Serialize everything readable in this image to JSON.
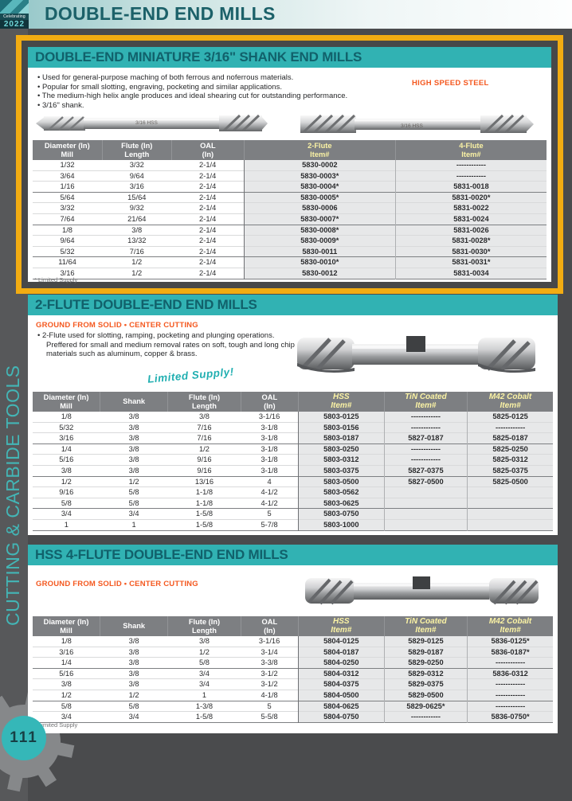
{
  "page": {
    "title": "DOUBLE-END END MILLS",
    "logo": {
      "line1": "Celebrating",
      "line2": "2022"
    },
    "sidebar_text": "CUTTING & CARBIDE TOOLS",
    "page_number": "111"
  },
  "section1": {
    "title": "DOUBLE-END MINIATURE 3/16\" SHANK END MILLS",
    "bullets": [
      "Used for general-purpose maching of both ferrous and noferrous materials.",
      "Popular for small slotting, engraving, pocketing and similar applications.",
      "The medium-high helix angle produces and ideal shearing cut for outstanding performance.",
      "3/16\" shank."
    ],
    "material_label": "HIGH SPEED STEEL",
    "photo_labels": [
      "3/16 HSS",
      "3/16 HSS"
    ],
    "table": {
      "columns": [
        {
          "lines": [
            "Diameter  (In)",
            "Mill"
          ],
          "item": false,
          "w": "13.5%"
        },
        {
          "lines": [
            "Flute (In)",
            "Length"
          ],
          "item": false,
          "w": "13.5%"
        },
        {
          "lines": [
            "OAL",
            "(In)"
          ],
          "item": false,
          "w": "14%"
        },
        {
          "lines": [
            "2-Flute",
            "Item#"
          ],
          "item": true,
          "w": "29.5%"
        },
        {
          "lines": [
            "4-Flute",
            "Item#"
          ],
          "item": true,
          "w": "29.5%"
        }
      ],
      "rows": [
        [
          "1/32",
          "3/32",
          "2-1/4",
          "5830-0002",
          "------------"
        ],
        [
          "3/64",
          "9/64",
          "2-1/4",
          "5830-0003*",
          "------------"
        ],
        [
          "1/16",
          "3/16",
          "2-1/4",
          "5830-0004*",
          "5831-0018"
        ],
        [
          "5/64",
          "15/64",
          "2-1/4",
          "5830-0005*",
          "5831-0020*"
        ],
        [
          "3/32",
          "9/32",
          "2-1/4",
          "5830-0006",
          "5831-0022"
        ],
        [
          "7/64",
          "21/64",
          "2-1/4",
          "5830-0007*",
          "5831-0024"
        ],
        [
          "1/8",
          "3/8",
          "2-1/4",
          "5830-0008*",
          "5831-0026"
        ],
        [
          "9/64",
          "13/32",
          "2-1/4",
          "5830-0009*",
          "5831-0028*"
        ],
        [
          "5/32",
          "7/16",
          "2-1/4",
          "5830-0011",
          "5831-0030*"
        ],
        [
          "11/64",
          "1/2",
          "2-1/4",
          "5830-0010*",
          "5831-0031*"
        ],
        [
          "3/16",
          "1/2",
          "2-1/4",
          "5830-0012",
          "5831-0034"
        ]
      ],
      "breaks_after": [
        2,
        5,
        8
      ]
    },
    "footnote": "* Limited Supply"
  },
  "section2": {
    "title": "2-FLUTE DOUBLE-END END MILLS",
    "subtitle": "GROUND FROM SOLID • CENTER CUTTING",
    "bullets": [
      "2-Flute used for slotting, ramping, pocketing and plunging operations. Preffered for small and medium removal rates on soft, tough and long chip materials such as aluminum, copper & brass."
    ],
    "limited_supply": "Limited Supply!",
    "table": {
      "columns": [
        {
          "lines": [
            "Diameter  (In)",
            "Mill"
          ],
          "item": false,
          "w": "13%"
        },
        {
          "lines": [
            "Shank"
          ],
          "item": false,
          "w": "13%"
        },
        {
          "lines": [
            "Flute (In)",
            "Length"
          ],
          "item": false,
          "w": "14%"
        },
        {
          "lines": [
            "OAL",
            "(In)"
          ],
          "item": false,
          "w": "11%"
        },
        {
          "lines": [
            "HSS",
            "Item#"
          ],
          "item": true,
          "w": "16.5%"
        },
        {
          "lines": [
            "TiN Coated",
            "Item#"
          ],
          "item": true,
          "w": "16%"
        },
        {
          "lines": [
            "M42 Cobalt",
            "Item#"
          ],
          "item": true,
          "w": "16.5%"
        }
      ],
      "rows": [
        [
          "1/8",
          "3/8",
          "3/8",
          "3-1/16",
          "5803-0125",
          "------------",
          "5825-0125"
        ],
        [
          "5/32",
          "3/8",
          "7/16",
          "3-1/8",
          "5803-0156",
          "------------",
          "------------"
        ],
        [
          "3/16",
          "3/8",
          "7/16",
          "3-1/8",
          "5803-0187",
          "5827-0187",
          "5825-0187"
        ],
        [
          "1/4",
          "3/8",
          "1/2",
          "3-1/8",
          "5803-0250",
          "------------",
          "5825-0250"
        ],
        [
          "5/16",
          "3/8",
          "9/16",
          "3-1/8",
          "5803-0312",
          "------------",
          "5825-0312"
        ],
        [
          "3/8",
          "3/8",
          "9/16",
          "3-1/8",
          "5803-0375",
          "5827-0375",
          "5825-0375"
        ],
        [
          "1/2",
          "1/2",
          "13/16",
          "4",
          "5803-0500",
          "5827-0500",
          "5825-0500"
        ],
        [
          "9/16",
          "5/8",
          "1-1/8",
          "4-1/2",
          "5803-0562",
          "",
          ""
        ],
        [
          "5/8",
          "5/8",
          "1-1/8",
          "4-1/2",
          "5803-0625",
          "",
          ""
        ],
        [
          "3/4",
          "3/4",
          "1-5/8",
          "5",
          "5803-0750",
          "",
          ""
        ],
        [
          "1",
          "1",
          "1-5/8",
          "5-7/8",
          "5803-1000",
          "",
          ""
        ]
      ],
      "breaks_after": [
        2,
        5,
        8
      ]
    }
  },
  "section3": {
    "title": "HSS 4-FLUTE DOUBLE-END END MILLS",
    "subtitle": "GROUND FROM SOLID • CENTER CUTTING",
    "table": {
      "columns": [
        {
          "lines": [
            "Diameter  (In)",
            "Mill"
          ],
          "item": false,
          "w": "13%"
        },
        {
          "lines": [
            "Shank"
          ],
          "item": false,
          "w": "13%"
        },
        {
          "lines": [
            "Flute (In)",
            "Length"
          ],
          "item": false,
          "w": "14%"
        },
        {
          "lines": [
            "OAL",
            "(In)"
          ],
          "item": false,
          "w": "11%"
        },
        {
          "lines": [
            "HSS",
            "Item#"
          ],
          "item": true,
          "w": "16.5%"
        },
        {
          "lines": [
            "TiN Coated",
            "Item#"
          ],
          "item": true,
          "w": "16%"
        },
        {
          "lines": [
            "M42 Cobalt",
            "Item#"
          ],
          "item": true,
          "w": "16.5%"
        }
      ],
      "rows": [
        [
          "1/8",
          "3/8",
          "3/8",
          "3-1/16",
          "5804-0125",
          "5829-0125",
          "5836-0125*"
        ],
        [
          "3/16",
          "3/8",
          "1/2",
          "3-1/4",
          "5804-0187",
          "5829-0187",
          "5836-0187*"
        ],
        [
          "1/4",
          "3/8",
          "5/8",
          "3-3/8",
          "5804-0250",
          "5829-0250",
          "------------"
        ],
        [
          "5/16",
          "3/8",
          "3/4",
          "3-1/2",
          "5804-0312",
          "5829-0312",
          "5836-0312"
        ],
        [
          "3/8",
          "3/8",
          "3/4",
          "3-1/2",
          "5804-0375",
          "5829-0375",
          "------------"
        ],
        [
          "1/2",
          "1/2",
          "1",
          "4-1/8",
          "5804-0500",
          "5829-0500",
          "------------"
        ],
        [
          "5/8",
          "5/8",
          "1-3/8",
          "5",
          "5804-0625",
          "5829-0625*",
          "------------"
        ],
        [
          "3/4",
          "3/4",
          "1-5/8",
          "5-5/8",
          "5804-0750",
          "------------",
          "5836-0750*"
        ]
      ],
      "breaks_after": [
        2,
        5
      ]
    },
    "footnote": "* Limited Supply"
  },
  "colors": {
    "teal_bar": "#31B2B3",
    "teal_text": "#1C6169",
    "orange": "#F4581F",
    "highlight_yellow": "#F2AC12",
    "table_header_gray": "#7D7F82",
    "item_header_yellow": "#FBF3A5",
    "shade_gray": "#E7E8E9",
    "page_bg": "#4A4B4D"
  }
}
